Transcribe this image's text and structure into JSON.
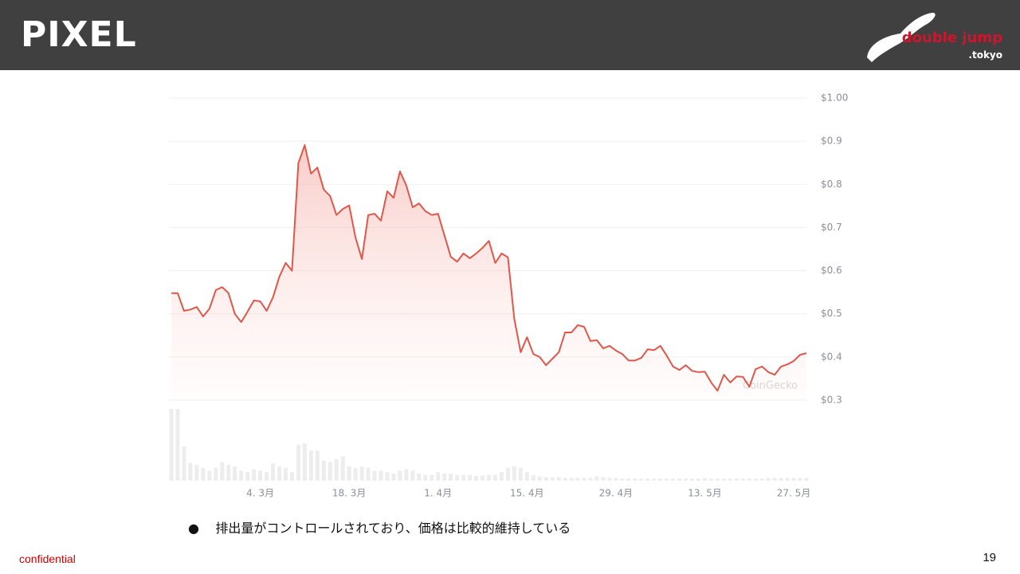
{
  "header": {
    "title": "PIXEL",
    "logo": "double jump",
    "logo_sub": ".tokyo"
  },
  "chart_data": {
    "type": "line",
    "color": "#e0574a",
    "grid": true,
    "watermark": "CoinGecko",
    "ylim": [
      0.3,
      1.0
    ],
    "yticks": [
      {
        "value": 0.3,
        "label": "$0.3"
      },
      {
        "value": 0.4,
        "label": "$0.4"
      },
      {
        "value": 0.5,
        "label": "$0.5"
      },
      {
        "value": 0.6,
        "label": "$0.6"
      },
      {
        "value": 0.7,
        "label": "$0.7"
      },
      {
        "value": 0.8,
        "label": "$0.8"
      },
      {
        "value": 0.9,
        "label": "$0.9"
      },
      {
        "value": 1.0,
        "label": "$1.00"
      }
    ],
    "categories": [
      null,
      null,
      null,
      null,
      null,
      null,
      null,
      null,
      null,
      null,
      null,
      null,
      null,
      null,
      "4. 3月",
      null,
      null,
      null,
      null,
      null,
      null,
      null,
      null,
      null,
      null,
      null,
      null,
      null,
      "18. 3月",
      null,
      null,
      null,
      null,
      null,
      null,
      null,
      null,
      null,
      null,
      null,
      null,
      null,
      "1. 4月",
      null,
      null,
      null,
      null,
      null,
      null,
      null,
      null,
      null,
      null,
      null,
      null,
      null,
      "15. 4月",
      null,
      null,
      null,
      null,
      null,
      null,
      null,
      null,
      null,
      null,
      null,
      null,
      null,
      "29. 4月",
      null,
      null,
      null,
      null,
      null,
      null,
      null,
      null,
      null,
      null,
      null,
      null,
      null,
      "13. 5月",
      null,
      null,
      null,
      null,
      null,
      null,
      null,
      null,
      null,
      null,
      null,
      null,
      null,
      "27. 5月",
      null,
      null
    ],
    "values": [
      0.548,
      0.548,
      0.507,
      0.51,
      0.516,
      0.494,
      0.512,
      0.555,
      0.562,
      0.548,
      0.5,
      0.481,
      0.505,
      0.531,
      0.529,
      0.507,
      0.538,
      0.586,
      0.618,
      0.6,
      0.849,
      0.891,
      0.825,
      0.839,
      0.788,
      0.773,
      0.729,
      0.743,
      0.751,
      0.677,
      0.627,
      0.729,
      0.732,
      0.716,
      0.784,
      0.769,
      0.83,
      0.797,
      0.747,
      0.756,
      0.738,
      0.729,
      0.732,
      0.682,
      0.632,
      0.621,
      0.64,
      0.629,
      0.64,
      0.653,
      0.669,
      0.618,
      0.64,
      0.631,
      0.488,
      0.411,
      0.446,
      0.407,
      0.4,
      0.381,
      0.396,
      0.411,
      0.457,
      0.457,
      0.474,
      0.47,
      0.437,
      0.439,
      0.42,
      0.426,
      0.415,
      0.407,
      0.392,
      0.392,
      0.398,
      0.418,
      0.416,
      0.426,
      0.403,
      0.378,
      0.37,
      0.381,
      0.368,
      0.365,
      0.366,
      0.341,
      0.322,
      0.359,
      0.341,
      0.355,
      0.354,
      0.331,
      0.372,
      0.378,
      0.365,
      0.359,
      0.378,
      0.383,
      0.391,
      0.405,
      0.409
    ],
    "volume_color": "#ededee",
    "volume": [
      100,
      100,
      48,
      25,
      22,
      18,
      14,
      18,
      26,
      22,
      20,
      14,
      12,
      16,
      14,
      12,
      24,
      20,
      18,
      12,
      50,
      52,
      42,
      42,
      28,
      26,
      30,
      34,
      20,
      18,
      20,
      18,
      14,
      14,
      12,
      10,
      14,
      16,
      14,
      10,
      8,
      8,
      12,
      10,
      10,
      8,
      8,
      8,
      7,
      7,
      8,
      8,
      12,
      18,
      20,
      18,
      12,
      8,
      6,
      5,
      5,
      5,
      4,
      4,
      4,
      4,
      4,
      6,
      5,
      4,
      4,
      3,
      3,
      3,
      3,
      3,
      3,
      3,
      3,
      3,
      3,
      3,
      3,
      3,
      4,
      3,
      3,
      3,
      3,
      3,
      3,
      3,
      3,
      3,
      4,
      4,
      4,
      4,
      4,
      4,
      4
    ]
  },
  "bullets": [
    "排出量がコントロールされており、価格は比較的維持している"
  ],
  "footer": {
    "label": "confidential",
    "page": "19"
  }
}
